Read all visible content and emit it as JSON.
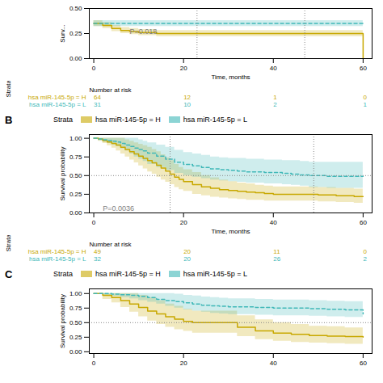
{
  "chart_data": [
    {
      "type": "step",
      "xlabel": "Time, months",
      "ylabel": "Surv...",
      "xlim": [
        -1,
        62
      ],
      "xticks": [
        0,
        20,
        40,
        60
      ],
      "ylim": [
        0,
        0.5
      ],
      "yticks": [
        {
          "value": 0,
          "label": "0.00"
        },
        {
          "value": 0.25,
          "label": "0.25"
        },
        {
          "value": 0.5,
          "label": "0.50"
        }
      ],
      "series": [
        {
          "name": "hsa miR-145-5p = H",
          "color": "#c8a800",
          "line_style": "solid",
          "x": [
            0,
            2,
            4,
            6,
            8,
            10,
            12,
            14,
            16,
            18,
            20,
            24,
            28,
            32,
            36,
            40,
            44,
            48,
            50,
            55,
            60
          ],
          "values": [
            0.35,
            0.33,
            0.3,
            0.28,
            0.27,
            0.26,
            0.26,
            0.25,
            0.25,
            0.25,
            0.25,
            0.25,
            0.25,
            0.25,
            0.25,
            0.25,
            0.25,
            0.25,
            0.25,
            0.25,
            0.0
          ],
          "upper": [
            0.38,
            0.36,
            0.33,
            0.31,
            0.3,
            0.29,
            0.29,
            0.28,
            0.28,
            0.28,
            0.28,
            0.28,
            0.28,
            0.28,
            0.28,
            0.28,
            0.28,
            0.28,
            0.28,
            0.28,
            0.18
          ],
          "lower": [
            0.32,
            0.3,
            0.27,
            0.25,
            0.24,
            0.23,
            0.23,
            0.22,
            0.22,
            0.22,
            0.22,
            0.22,
            0.22,
            0.22,
            0.22,
            0.22,
            0.22,
            0.22,
            0.22,
            0.22,
            0.0
          ]
        },
        {
          "name": "hsa miR-145-5p = L",
          "color": "#40b8b8",
          "line_style": "dashed",
          "x": [
            0,
            5,
            10,
            15,
            20,
            25,
            30,
            36,
            40,
            44,
            48,
            52,
            56,
            60
          ],
          "values": [
            0.35,
            0.35,
            0.35,
            0.35,
            0.35,
            0.35,
            0.35,
            0.35,
            0.35,
            0.35,
            0.35,
            0.35,
            0.35,
            0.35
          ],
          "upper": [
            0.38,
            0.38,
            0.38,
            0.38,
            0.38,
            0.38,
            0.38,
            0.38,
            0.38,
            0.38,
            0.38,
            0.38,
            0.38,
            0.38
          ],
          "lower": [
            0.32,
            0.32,
            0.32,
            0.32,
            0.32,
            0.32,
            0.32,
            0.32,
            0.32,
            0.32,
            0.32,
            0.32,
            0.32,
            0.32
          ]
        }
      ],
      "vlines": [
        23,
        47
      ],
      "annotations": [
        {
          "text": "P=0.018",
          "x": 8,
          "y": 0.27
        }
      ],
      "risk_table": {
        "title": "Number at risk",
        "side_label": "Strata",
        "x": [
          0,
          20,
          40,
          60
        ],
        "rows": [
          {
            "name": "hsa miR-145-5p = H",
            "color": "#c8a800",
            "values": [
              64,
              12,
              1,
              0
            ]
          },
          {
            "name": "hsa miR-145-5p = L",
            "color": "#40b8b8",
            "values": [
              31,
              10,
              2,
              1
            ]
          }
        ]
      }
    },
    {
      "type": "step",
      "title": "B",
      "legend": "top",
      "legend_title": "Strata",
      "xlabel": "Time, months",
      "ylabel": "Survival probability",
      "xlim": [
        -1,
        62
      ],
      "xticks": [
        0,
        20,
        40,
        60
      ],
      "ylim": [
        0,
        1.05
      ],
      "yticks": [
        {
          "value": 0,
          "label": "0.00"
        },
        {
          "value": 0.25,
          "label": "0.25"
        },
        {
          "value": 0.5,
          "label": "0.50"
        },
        {
          "value": 0.75,
          "label": "0.75"
        },
        {
          "value": 1,
          "label": "1.00"
        }
      ],
      "series": [
        {
          "name": "hsa miR-145-5p = H",
          "color": "#c8a800",
          "line_style": "solid",
          "x": [
            0,
            1,
            2,
            3,
            4,
            5,
            6,
            7,
            8,
            9,
            10,
            11,
            12,
            13,
            14,
            15,
            16,
            17,
            18,
            19,
            20,
            22,
            24,
            26,
            28,
            30,
            32,
            34,
            36,
            38,
            40,
            42,
            44,
            46,
            48,
            50,
            52,
            54,
            56,
            58,
            60
          ],
          "values": [
            1.0,
            0.99,
            0.97,
            0.95,
            0.93,
            0.91,
            0.88,
            0.85,
            0.82,
            0.79,
            0.76,
            0.73,
            0.7,
            0.67,
            0.64,
            0.6,
            0.56,
            0.52,
            0.48,
            0.45,
            0.42,
            0.38,
            0.35,
            0.33,
            0.31,
            0.3,
            0.29,
            0.28,
            0.27,
            0.26,
            0.25,
            0.25,
            0.25,
            0.25,
            0.25,
            0.24,
            0.24,
            0.23,
            0.23,
            0.22,
            0.22
          ],
          "upper": [
            1.0,
            1.0,
            1.0,
            1.0,
            1.0,
            1.0,
            1.0,
            0.98,
            0.96,
            0.94,
            0.92,
            0.9,
            0.88,
            0.85,
            0.82,
            0.78,
            0.74,
            0.7,
            0.65,
            0.61,
            0.58,
            0.54,
            0.5,
            0.47,
            0.44,
            0.42,
            0.4,
            0.39,
            0.37,
            0.36,
            0.35,
            0.35,
            0.35,
            0.35,
            0.35,
            0.34,
            0.34,
            0.33,
            0.33,
            0.32,
            0.32
          ],
          "lower": [
            1.0,
            0.96,
            0.93,
            0.9,
            0.87,
            0.83,
            0.79,
            0.75,
            0.71,
            0.67,
            0.63,
            0.59,
            0.55,
            0.52,
            0.48,
            0.44,
            0.41,
            0.38,
            0.34,
            0.31,
            0.29,
            0.25,
            0.23,
            0.21,
            0.2,
            0.19,
            0.18,
            0.17,
            0.17,
            0.16,
            0.16,
            0.16,
            0.16,
            0.16,
            0.16,
            0.15,
            0.15,
            0.14,
            0.14,
            0.13,
            0.13
          ]
        },
        {
          "name": "hsa miR-145-5p = L",
          "color": "#40b8b8",
          "line_style": "dashed",
          "x": [
            0,
            1,
            2,
            3,
            4,
            5,
            6,
            7,
            8,
            9,
            10,
            11,
            12,
            14,
            16,
            18,
            20,
            22,
            24,
            26,
            28,
            30,
            32,
            34,
            36,
            38,
            40,
            42,
            44,
            46,
            48,
            50,
            52,
            54,
            56,
            58,
            60
          ],
          "values": [
            1.0,
            0.99,
            0.98,
            0.97,
            0.96,
            0.95,
            0.93,
            0.91,
            0.89,
            0.87,
            0.85,
            0.83,
            0.8,
            0.76,
            0.72,
            0.68,
            0.65,
            0.63,
            0.61,
            0.59,
            0.58,
            0.57,
            0.56,
            0.55,
            0.55,
            0.54,
            0.54,
            0.53,
            0.52,
            0.51,
            0.5,
            0.5,
            0.49,
            0.49,
            0.49,
            0.49,
            0.49
          ],
          "upper": [
            1.0,
            1.0,
            1.0,
            1.0,
            1.0,
            1.0,
            1.0,
            1.0,
            1.0,
            1.0,
            0.98,
            0.96,
            0.94,
            0.91,
            0.88,
            0.84,
            0.81,
            0.79,
            0.77,
            0.75,
            0.74,
            0.73,
            0.73,
            0.72,
            0.72,
            0.71,
            0.71,
            0.7,
            0.7,
            0.69,
            0.68,
            0.68,
            0.68,
            0.68,
            0.68,
            0.68,
            0.68
          ],
          "lower": [
            1.0,
            0.97,
            0.95,
            0.93,
            0.91,
            0.89,
            0.86,
            0.83,
            0.79,
            0.75,
            0.72,
            0.69,
            0.65,
            0.61,
            0.57,
            0.53,
            0.5,
            0.48,
            0.46,
            0.44,
            0.43,
            0.42,
            0.41,
            0.4,
            0.4,
            0.39,
            0.39,
            0.38,
            0.37,
            0.36,
            0.34,
            0.34,
            0.33,
            0.33,
            0.33,
            0.33,
            0.33
          ]
        }
      ],
      "hlines": [
        0.5
      ],
      "vlines": [
        17,
        49
      ],
      "annotations": [
        {
          "text": "P=0.0036",
          "x": 2,
          "y": 0.06
        }
      ],
      "risk_table": {
        "title": "Number at risk",
        "side_label": "Strata",
        "x": [
          0,
          20,
          40,
          60
        ],
        "rows": [
          {
            "name": "hsa miR-145-5p = H",
            "color": "#c8a800",
            "values": [
              49,
              20,
              11,
              0
            ]
          },
          {
            "name": "hsa miR-145-5p = L",
            "color": "#40b8b8",
            "values": [
              32,
              20,
              26,
              2
            ]
          }
        ]
      }
    },
    {
      "type": "step",
      "title": "C",
      "legend": "top",
      "legend_title": "Strata",
      "ylabel": "Survival probability",
      "xlim": [
        -1,
        62
      ],
      "xticks": [
        0,
        20,
        40,
        60
      ],
      "ylim": [
        -0.03,
        1.08
      ],
      "yticks": [
        {
          "value": 0,
          "label": "0.00"
        },
        {
          "value": 0.25,
          "label": "0.25"
        },
        {
          "value": 0.5,
          "label": "0.50"
        },
        {
          "value": 0.75,
          "label": "0.75"
        },
        {
          "value": 1,
          "label": "1.00"
        }
      ],
      "series": [
        {
          "name": "hsa miR-145-5p = H",
          "color": "#c8a800",
          "line_style": "solid",
          "x": [
            0,
            2,
            4,
            6,
            8,
            10,
            12,
            14,
            16,
            18,
            20,
            22,
            24,
            26,
            28,
            30,
            32,
            36,
            40,
            44,
            48,
            52,
            56,
            60
          ],
          "values": [
            1.0,
            0.97,
            0.93,
            0.88,
            0.82,
            0.76,
            0.7,
            0.65,
            0.6,
            0.56,
            0.52,
            0.5,
            0.5,
            0.5,
            0.5,
            0.5,
            0.42,
            0.36,
            0.32,
            0.3,
            0.28,
            0.27,
            0.26,
            0.25
          ],
          "upper": [
            1.0,
            1.0,
            1.0,
            1.0,
            1.0,
            0.97,
            0.93,
            0.88,
            0.82,
            0.78,
            0.73,
            0.7,
            0.7,
            0.7,
            0.7,
            0.7,
            0.62,
            0.55,
            0.5,
            0.47,
            0.44,
            0.43,
            0.41,
            0.4
          ],
          "lower": [
            1.0,
            0.9,
            0.84,
            0.76,
            0.68,
            0.6,
            0.53,
            0.47,
            0.42,
            0.38,
            0.35,
            0.32,
            0.32,
            0.32,
            0.32,
            0.32,
            0.26,
            0.21,
            0.18,
            0.16,
            0.15,
            0.14,
            0.13,
            0.13
          ]
        },
        {
          "name": "hsa miR-145-5p = L",
          "color": "#40b8b8",
          "line_style": "dashed",
          "x": [
            0,
            2,
            4,
            6,
            8,
            10,
            12,
            14,
            16,
            18,
            20,
            22,
            24,
            26,
            28,
            30,
            36,
            40,
            44,
            48,
            52,
            56,
            60
          ],
          "values": [
            1.0,
            1.0,
            0.99,
            0.98,
            0.97,
            0.95,
            0.93,
            0.9,
            0.88,
            0.86,
            0.84,
            0.82,
            0.8,
            0.79,
            0.78,
            0.77,
            0.76,
            0.75,
            0.75,
            0.74,
            0.73,
            0.72,
            0.65
          ],
          "upper": [
            1.0,
            1.0,
            1.0,
            1.0,
            1.0,
            1.0,
            1.0,
            1.0,
            1.0,
            0.99,
            0.97,
            0.96,
            0.94,
            0.93,
            0.92,
            0.91,
            0.9,
            0.89,
            0.89,
            0.88,
            0.87,
            0.86,
            0.8
          ],
          "lower": [
            1.0,
            0.97,
            0.95,
            0.93,
            0.91,
            0.88,
            0.85,
            0.82,
            0.78,
            0.75,
            0.72,
            0.7,
            0.68,
            0.66,
            0.65,
            0.64,
            0.63,
            0.62,
            0.62,
            0.61,
            0.6,
            0.59,
            0.52
          ]
        }
      ],
      "hlines": [
        0.5
      ]
    }
  ]
}
